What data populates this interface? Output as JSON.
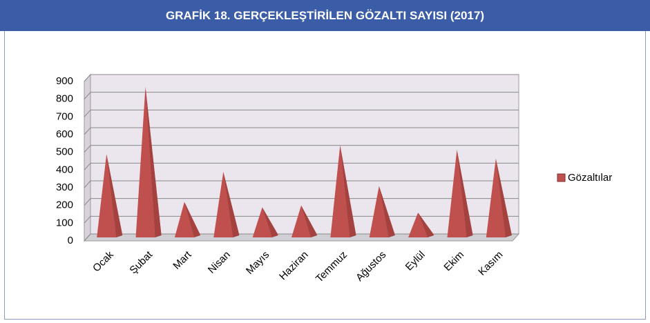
{
  "chart_data": {
    "type": "bar",
    "title": "GRAFİK 18. GERÇEKLEŞTİRİLEN GÖZALTI SAYISI (2017)",
    "categories": [
      "Ocak",
      "Şubat",
      "Mart",
      "Nisan",
      "Mayıs",
      "Haziran",
      "Temmuz",
      "Ağustos",
      "Eylül",
      "Ekim",
      "Kasım"
    ],
    "series": [
      {
        "name": "Gözaltılar",
        "color": "#c0504d",
        "values": [
          470,
          850,
          200,
          370,
          170,
          180,
          520,
          290,
          140,
          495,
          445
        ]
      }
    ],
    "ylim": [
      0,
      900
    ],
    "yticks": [
      0,
      100,
      200,
      300,
      400,
      500,
      600,
      700,
      800,
      900
    ],
    "grid": true,
    "legend": "right"
  }
}
